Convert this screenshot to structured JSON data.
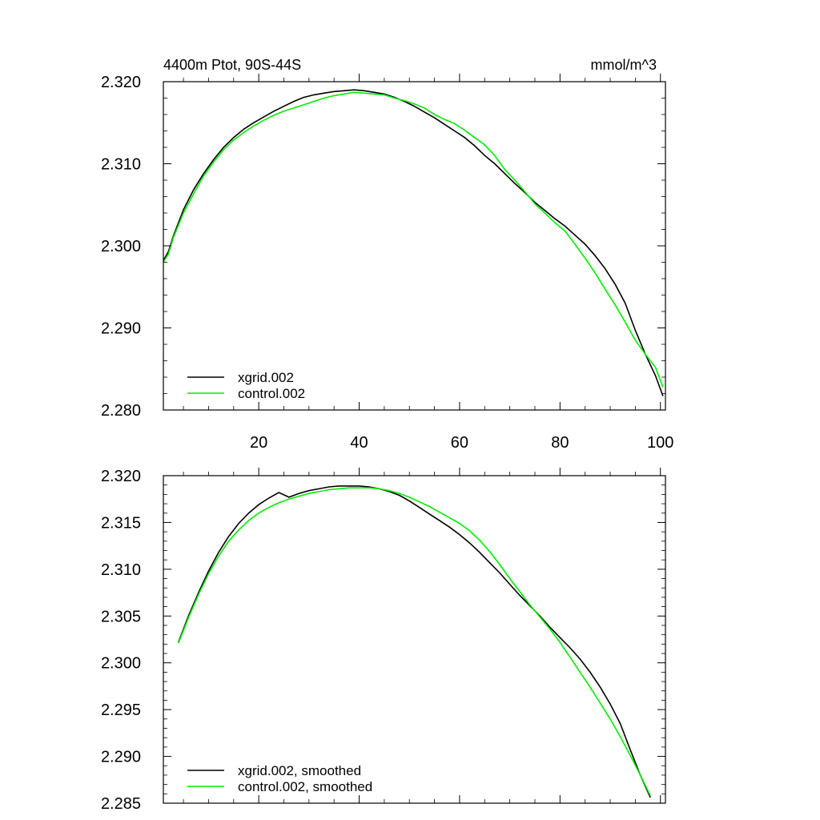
{
  "chart_data": [
    {
      "type": "line",
      "title": "4400m Ptot, 90S-44S",
      "units": "mmol/m^3",
      "xlim": [
        1,
        101
      ],
      "ylim": [
        2.28,
        2.32
      ],
      "x_ticks": [
        "20",
        "40",
        "60",
        "80",
        "100"
      ],
      "x_tick_values": [
        20,
        40,
        60,
        80,
        100
      ],
      "y_ticks": [
        "2.280",
        "2.290",
        "2.300",
        "2.310",
        "2.320"
      ],
      "y_tick_values": [
        2.28,
        2.29,
        2.3,
        2.31,
        2.32
      ],
      "legend": "bottom-left",
      "grid": false,
      "series": [
        {
          "name": "xgrid.002",
          "color": "#000000",
          "x": [
            1,
            2,
            3,
            5,
            7,
            9,
            11,
            13,
            15,
            17,
            19,
            21,
            23,
            25,
            27,
            29,
            31,
            33,
            35,
            37,
            39,
            41,
            43,
            45,
            47,
            49,
            51,
            53,
            55,
            57,
            59,
            61,
            63,
            65,
            67,
            69,
            71,
            73,
            75,
            77,
            79,
            81,
            83,
            85,
            87,
            89,
            91,
            93,
            95,
            97,
            99,
            100.5
          ],
          "values": [
            2.2982,
            2.2993,
            2.3012,
            2.3044,
            2.3068,
            2.3088,
            2.3105,
            2.312,
            2.3132,
            2.3142,
            2.315,
            2.3157,
            2.3164,
            2.317,
            2.3176,
            2.3181,
            2.3184,
            2.3186,
            2.3188,
            2.3189,
            2.319,
            2.3189,
            2.3187,
            2.3185,
            2.3181,
            2.3176,
            2.317,
            2.3163,
            2.3156,
            2.3148,
            2.314,
            2.3132,
            2.3122,
            2.311,
            2.31,
            2.3088,
            2.3076,
            2.3065,
            2.3053,
            2.3043,
            2.3033,
            2.3024,
            2.3013,
            2.3002,
            2.2988,
            2.2972,
            2.2953,
            2.293,
            2.2897,
            2.2868,
            2.2842,
            2.2817
          ]
        },
        {
          "name": "control.002",
          "color": "#00ee00",
          "x": [
            1,
            2,
            3,
            5,
            7,
            9,
            11,
            13,
            15,
            17,
            19,
            21,
            23,
            25,
            27,
            29,
            31,
            33,
            35,
            37,
            39,
            41,
            43,
            45,
            47,
            49,
            51,
            53,
            55,
            57,
            59,
            61,
            63,
            65,
            67,
            69,
            71,
            73,
            75,
            77,
            79,
            81,
            83,
            85,
            87,
            89,
            91,
            93,
            95,
            97,
            99,
            100.5
          ],
          "values": [
            2.298,
            2.299,
            2.301,
            2.304,
            2.3063,
            2.3085,
            2.3102,
            2.3117,
            2.3129,
            2.3138,
            2.3146,
            2.3153,
            2.3159,
            2.3164,
            2.3168,
            2.3172,
            2.3176,
            2.318,
            2.3183,
            2.3185,
            2.3187,
            2.3186,
            2.3185,
            2.3184,
            2.318,
            2.3177,
            2.3173,
            2.3168,
            2.316,
            2.3154,
            2.3149,
            2.3141,
            2.3132,
            2.3123,
            2.311,
            2.3093,
            2.308,
            2.3066,
            2.3051,
            2.304,
            2.3028,
            2.3018,
            2.3002,
            2.2985,
            2.2967,
            2.2947,
            2.2928,
            2.2907,
            2.2885,
            2.2868,
            2.2852,
            2.2828
          ]
        }
      ]
    },
    {
      "type": "line",
      "xlim": [
        1,
        101
      ],
      "ylim": [
        2.285,
        2.32
      ],
      "x_ticks": [],
      "x_tick_values": [
        20,
        40,
        60,
        80,
        100
      ],
      "y_ticks": [
        "2.285",
        "2.290",
        "2.295",
        "2.300",
        "2.305",
        "2.310",
        "2.315",
        "2.320"
      ],
      "y_tick_values": [
        2.285,
        2.29,
        2.295,
        2.3,
        2.305,
        2.31,
        2.315,
        2.32
      ],
      "legend": "bottom-left",
      "grid": false,
      "series": [
        {
          "name": "xgrid.002, smoothed",
          "color": "#000000",
          "x": [
            4,
            6,
            8,
            10,
            12,
            14,
            16,
            18,
            20,
            22,
            24,
            26,
            28,
            30,
            32,
            34,
            36,
            38,
            40,
            42,
            44,
            46,
            48,
            50,
            52,
            54,
            56,
            58,
            60,
            62,
            64,
            66,
            68,
            70,
            72,
            74,
            76,
            78,
            80,
            82,
            84,
            86,
            88,
            90,
            92,
            94,
            96,
            98
          ],
          "values": [
            2.3022,
            2.305,
            2.3075,
            2.3098,
            2.3118,
            2.3135,
            2.3149,
            2.316,
            2.3169,
            2.3176,
            2.3182,
            2.3177,
            2.3181,
            2.3184,
            2.3186,
            2.3188,
            2.3189,
            2.3189,
            2.3189,
            2.3188,
            2.3186,
            2.3183,
            2.3179,
            2.3173,
            2.3166,
            2.3159,
            2.3152,
            2.3145,
            2.3137,
            2.3128,
            2.3118,
            2.3107,
            2.3096,
            2.3084,
            2.3072,
            2.3061,
            2.305,
            2.3038,
            2.3027,
            2.3016,
            2.3004,
            2.299,
            2.2974,
            2.2956,
            2.2935,
            2.2907,
            2.288,
            2.2856
          ]
        },
        {
          "name": "control.002, smoothed",
          "color": "#00ee00",
          "x": [
            4,
            6,
            8,
            10,
            12,
            14,
            16,
            18,
            20,
            22,
            24,
            26,
            28,
            30,
            32,
            34,
            36,
            38,
            40,
            42,
            44,
            46,
            48,
            50,
            52,
            54,
            56,
            58,
            60,
            62,
            64,
            66,
            68,
            70,
            72,
            74,
            76,
            78,
            80,
            82,
            84,
            86,
            88,
            90,
            92,
            94,
            96,
            98
          ],
          "values": [
            2.3021,
            2.3048,
            2.3073,
            2.3095,
            2.3114,
            2.313,
            2.3142,
            2.3152,
            2.316,
            2.3166,
            2.3171,
            2.3175,
            2.3178,
            2.3181,
            2.3183,
            2.3185,
            2.3186,
            2.3187,
            2.3187,
            2.3187,
            2.3186,
            2.3184,
            2.3181,
            2.3177,
            2.3172,
            2.3167,
            2.3161,
            2.3155,
            2.3149,
            2.3141,
            2.3131,
            2.3119,
            2.3105,
            2.309,
            2.3076,
            2.3062,
            2.3049,
            2.3036,
            2.3022,
            2.3006,
            2.299,
            2.2974,
            2.2957,
            2.294,
            2.2921,
            2.2901,
            2.288,
            2.2858
          ]
        }
      ]
    }
  ]
}
